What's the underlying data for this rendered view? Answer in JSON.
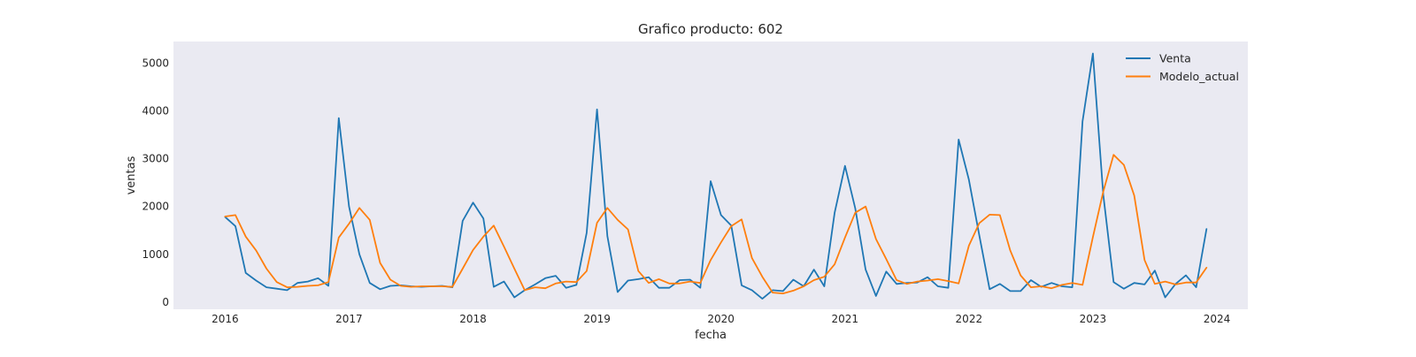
{
  "chart_data": {
    "type": "line",
    "title": "Grafico producto: 602",
    "xlabel": "fecha",
    "ylabel": "ventas",
    "x_ticks": [
      "2016",
      "2017",
      "2018",
      "2019",
      "2020",
      "2021",
      "2022",
      "2023",
      "2024"
    ],
    "y_ticks": [
      "0",
      "1000",
      "2000",
      "3000",
      "4000",
      "5000"
    ],
    "xlim": [
      "2015-08",
      "2024-04"
    ],
    "ylim": [
      -150,
      5450
    ],
    "grid": false,
    "legend_position": "top-right",
    "x": [
      "2016-01",
      "2016-02",
      "2016-03",
      "2016-04",
      "2016-05",
      "2016-06",
      "2016-07",
      "2016-08",
      "2016-09",
      "2016-10",
      "2016-11",
      "2016-12",
      "2017-01",
      "2017-02",
      "2017-03",
      "2017-04",
      "2017-05",
      "2017-06",
      "2017-07",
      "2017-08",
      "2017-09",
      "2017-10",
      "2017-11",
      "2017-12",
      "2018-01",
      "2018-02",
      "2018-03",
      "2018-04",
      "2018-05",
      "2018-06",
      "2018-07",
      "2018-08",
      "2018-09",
      "2018-10",
      "2018-11",
      "2018-12",
      "2019-01",
      "2019-02",
      "2019-03",
      "2019-04",
      "2019-05",
      "2019-06",
      "2019-07",
      "2019-08",
      "2019-09",
      "2019-10",
      "2019-11",
      "2019-12",
      "2020-01",
      "2020-02",
      "2020-03",
      "2020-04",
      "2020-05",
      "2020-06",
      "2020-07",
      "2020-08",
      "2020-09",
      "2020-10",
      "2020-11",
      "2020-12",
      "2021-01",
      "2021-02",
      "2021-03",
      "2021-04",
      "2021-05",
      "2021-06",
      "2021-07",
      "2021-08",
      "2021-09",
      "2021-10",
      "2021-11",
      "2021-12",
      "2022-01",
      "2022-02",
      "2022-03",
      "2022-04",
      "2022-05",
      "2022-06",
      "2022-07",
      "2022-08",
      "2022-09",
      "2022-10",
      "2022-11",
      "2022-12",
      "2023-01",
      "2023-02",
      "2023-03",
      "2023-04",
      "2023-05",
      "2023-06",
      "2023-07",
      "2023-08",
      "2023-09",
      "2023-10",
      "2023-11",
      "2023-12"
    ],
    "series": [
      {
        "name": "Venta",
        "color": "#1f77b4",
        "values": [
          1780,
          1590,
          610,
          450,
          310,
          280,
          250,
          400,
          430,
          500,
          340,
          3850,
          2000,
          1000,
          400,
          270,
          340,
          350,
          330,
          320,
          330,
          340,
          310,
          1700,
          2080,
          1750,
          320,
          430,
          100,
          250,
          370,
          500,
          550,
          300,
          360,
          1450,
          4030,
          1380,
          210,
          450,
          480,
          520,
          300,
          300,
          460,
          470,
          300,
          2530,
          1820,
          1600,
          350,
          250,
          70,
          250,
          230,
          470,
          330,
          680,
          330,
          1870,
          2850,
          1960,
          680,
          130,
          640,
          380,
          400,
          410,
          520,
          330,
          300,
          3400,
          2560,
          1400,
          270,
          380,
          230,
          230,
          460,
          320,
          400,
          330,
          310,
          3780,
          5200,
          2250,
          420,
          280,
          400,
          370,
          660,
          100,
          380,
          560,
          310,
          1530
        ]
      },
      {
        "name": "Modelo_actual",
        "color": "#ff7f0e",
        "values": [
          1790,
          1820,
          1370,
          1080,
          700,
          420,
          310,
          320,
          340,
          350,
          420,
          1350,
          1640,
          1970,
          1720,
          820,
          470,
          340,
          320,
          330,
          330,
          330,
          320,
          700,
          1090,
          1370,
          1600,
          1160,
          700,
          250,
          310,
          290,
          390,
          430,
          420,
          650,
          1660,
          1970,
          1720,
          1520,
          650,
          400,
          480,
          390,
          390,
          430,
          400,
          880,
          1250,
          1590,
          1730,
          920,
          530,
          200,
          180,
          240,
          330,
          460,
          530,
          790,
          1350,
          1870,
          2000,
          1320,
          900,
          460,
          380,
          430,
          450,
          480,
          440,
          390,
          1180,
          1650,
          1830,
          1820,
          1080,
          560,
          310,
          330,
          290,
          360,
          400,
          360,
          1360,
          2310,
          3080,
          2870,
          2230,
          880,
          380,
          430,
          370,
          410,
          410,
          720
        ]
      }
    ]
  },
  "colors": {
    "plot_background": "#eaeaf2"
  }
}
